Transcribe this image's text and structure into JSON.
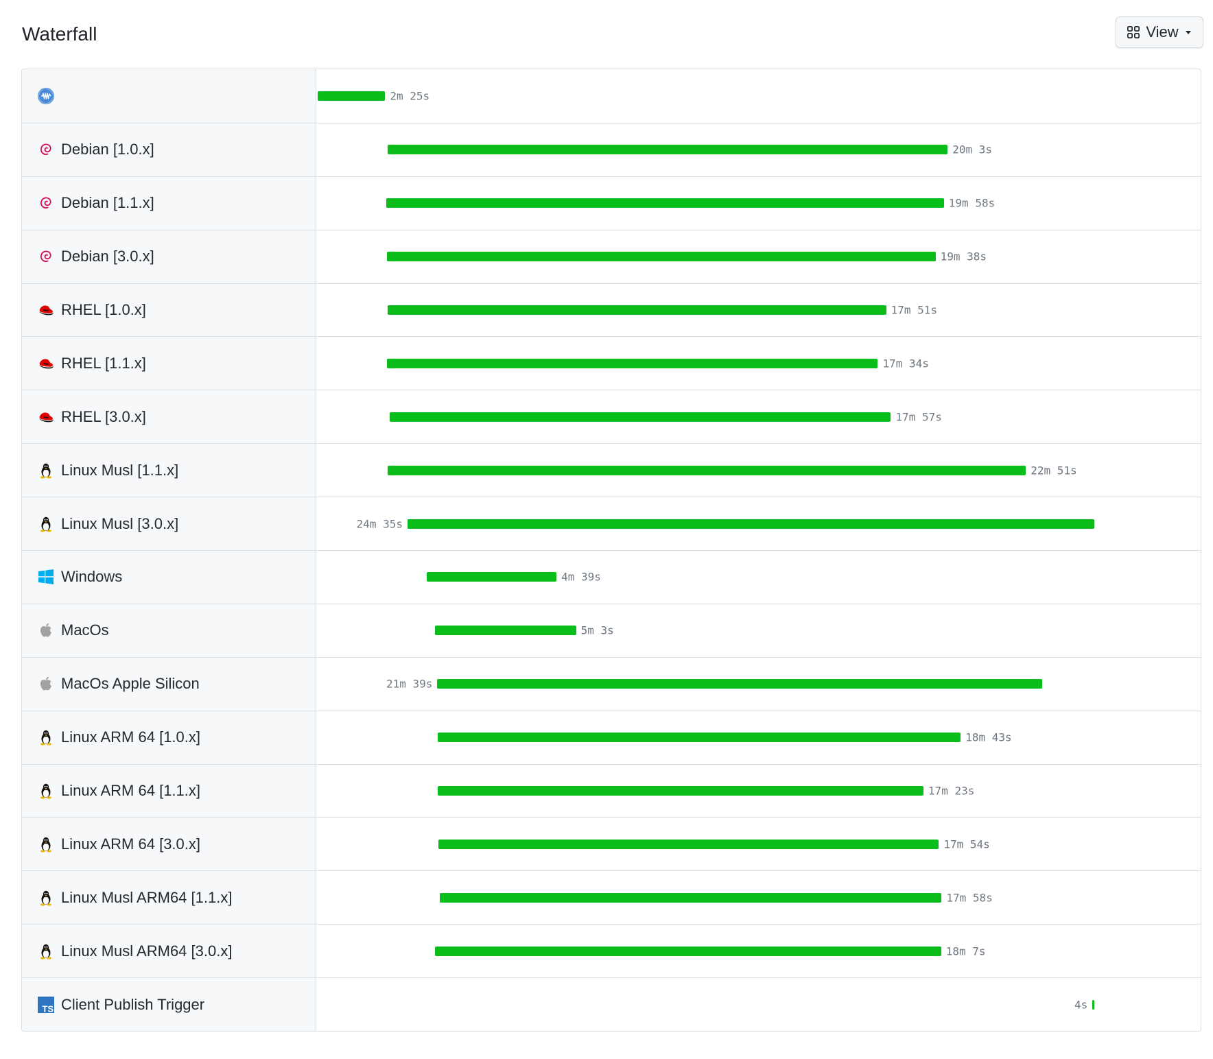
{
  "header": {
    "title": "Waterfall",
    "view_button_label": "View",
    "view_icon": "grid-icon",
    "caret_icon": "caret-down-icon"
  },
  "colors": {
    "bar": "#0bbd1b",
    "duration_text": "#6e7781",
    "label_background": "#f6f8fa"
  },
  "timeline": {
    "total_seconds": 1668
  },
  "jobs": [
    {
      "name": "",
      "icon": "workflow-icon",
      "start_seconds": 0,
      "duration_seconds": 145,
      "duration_label": "2m 25s",
      "label_side": "right"
    },
    {
      "name": "Debian [1.0.x]",
      "icon": "debian-icon",
      "start_seconds": 150,
      "duration_seconds": 1203,
      "duration_label": "20m 3s",
      "label_side": "right"
    },
    {
      "name": "Debian [1.1.x]",
      "icon": "debian-icon",
      "start_seconds": 147,
      "duration_seconds": 1198,
      "duration_label": "19m 58s",
      "label_side": "right"
    },
    {
      "name": "Debian [3.0.x]",
      "icon": "debian-icon",
      "start_seconds": 149,
      "duration_seconds": 1178,
      "duration_label": "19m 38s",
      "label_side": "right"
    },
    {
      "name": "RHEL [1.0.x]",
      "icon": "redhat-icon",
      "start_seconds": 150,
      "duration_seconds": 1071,
      "duration_label": "17m 51s",
      "label_side": "right"
    },
    {
      "name": "RHEL [1.1.x]",
      "icon": "redhat-icon",
      "start_seconds": 149,
      "duration_seconds": 1054,
      "duration_label": "17m 34s",
      "label_side": "right"
    },
    {
      "name": "RHEL [3.0.x]",
      "icon": "redhat-icon",
      "start_seconds": 154,
      "duration_seconds": 1077,
      "duration_label": "17m 57s",
      "label_side": "right"
    },
    {
      "name": "Linux Musl [1.1.x]",
      "icon": "tux-icon",
      "start_seconds": 150,
      "duration_seconds": 1371,
      "duration_label": "22m 51s",
      "label_side": "right"
    },
    {
      "name": "Linux Musl [3.0.x]",
      "icon": "tux-icon",
      "start_seconds": 193,
      "duration_seconds": 1475,
      "duration_label": "24m 35s",
      "label_side": "left"
    },
    {
      "name": "Windows",
      "icon": "windows-icon",
      "start_seconds": 234,
      "duration_seconds": 279,
      "duration_label": "4m 39s",
      "label_side": "right"
    },
    {
      "name": "MacOs",
      "icon": "apple-icon",
      "start_seconds": 252,
      "duration_seconds": 303,
      "duration_label": "5m 3s",
      "label_side": "right"
    },
    {
      "name": "MacOs Apple Silicon",
      "icon": "apple-icon",
      "start_seconds": 257,
      "duration_seconds": 1299,
      "duration_label": "21m 39s",
      "label_side": "left"
    },
    {
      "name": "Linux ARM 64 [1.0.x]",
      "icon": "tux-icon",
      "start_seconds": 258,
      "duration_seconds": 1123,
      "duration_label": "18m 43s",
      "label_side": "right"
    },
    {
      "name": "Linux ARM 64 [1.1.x]",
      "icon": "tux-icon",
      "start_seconds": 258,
      "duration_seconds": 1043,
      "duration_label": "17m 23s",
      "label_side": "right"
    },
    {
      "name": "Linux ARM 64 [3.0.x]",
      "icon": "tux-icon",
      "start_seconds": 260,
      "duration_seconds": 1074,
      "duration_label": "17m 54s",
      "label_side": "right"
    },
    {
      "name": "Linux Musl ARM64 [1.1.x]",
      "icon": "tux-icon",
      "start_seconds": 262,
      "duration_seconds": 1078,
      "duration_label": "17m 58s",
      "label_side": "right"
    },
    {
      "name": "Linux Musl ARM64 [3.0.x]",
      "icon": "tux-icon",
      "start_seconds": 252,
      "duration_seconds": 1087,
      "duration_label": "18m 7s",
      "label_side": "right"
    },
    {
      "name": "Client Publish Trigger",
      "icon": "typescript-icon",
      "start_seconds": 1664,
      "duration_seconds": 4,
      "duration_label": "4s",
      "label_side": "left"
    }
  ]
}
